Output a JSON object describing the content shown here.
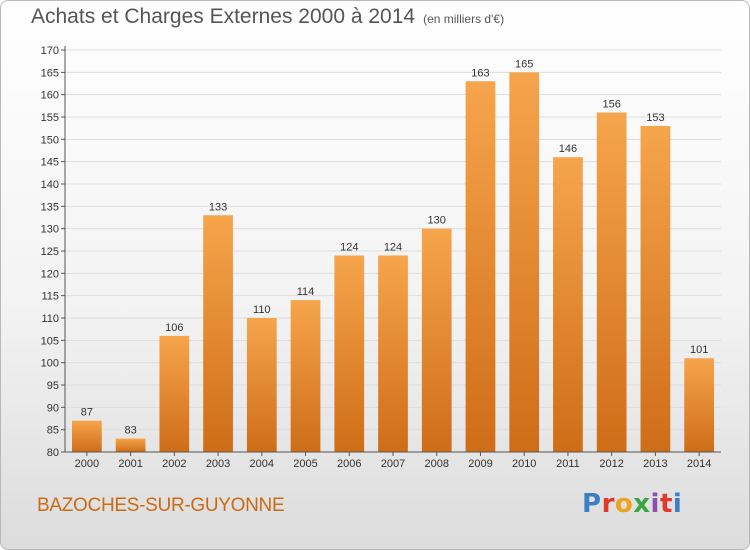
{
  "header": {
    "title": "Achats et Charges Externes 2000 à 2014",
    "subtitle": "(en milliers d'€)"
  },
  "footer": {
    "commune": "BAZOCHES-SUR-GUYONNE",
    "logo_text": "Proxiti"
  },
  "colors": {
    "bar_light": "#f6a54c",
    "bar_dark": "#cf6d17",
    "axis": "#555555",
    "grid": "#dddddd"
  },
  "chart_data": {
    "type": "bar",
    "categories": [
      "2000",
      "2001",
      "2002",
      "2003",
      "2004",
      "2005",
      "2006",
      "2007",
      "2008",
      "2009",
      "2010",
      "2011",
      "2012",
      "2013",
      "2014"
    ],
    "values": [
      87,
      83,
      106,
      133,
      110,
      114,
      124,
      124,
      130,
      163,
      165,
      146,
      156,
      153,
      101
    ],
    "data_labels": [
      "87",
      "83",
      "106",
      "133",
      "110",
      "114",
      "124",
      "124",
      "130",
      "163",
      "165",
      "146",
      "156",
      "153",
      "101"
    ],
    "y_ticks": [
      "80",
      "85",
      "90",
      "95",
      "100",
      "105",
      "110",
      "115",
      "120",
      "125",
      "130",
      "135",
      "140",
      "145",
      "150",
      "155",
      "160",
      "165",
      "170"
    ],
    "ylim": [
      80,
      170
    ],
    "grid": true,
    "legend": "none"
  }
}
